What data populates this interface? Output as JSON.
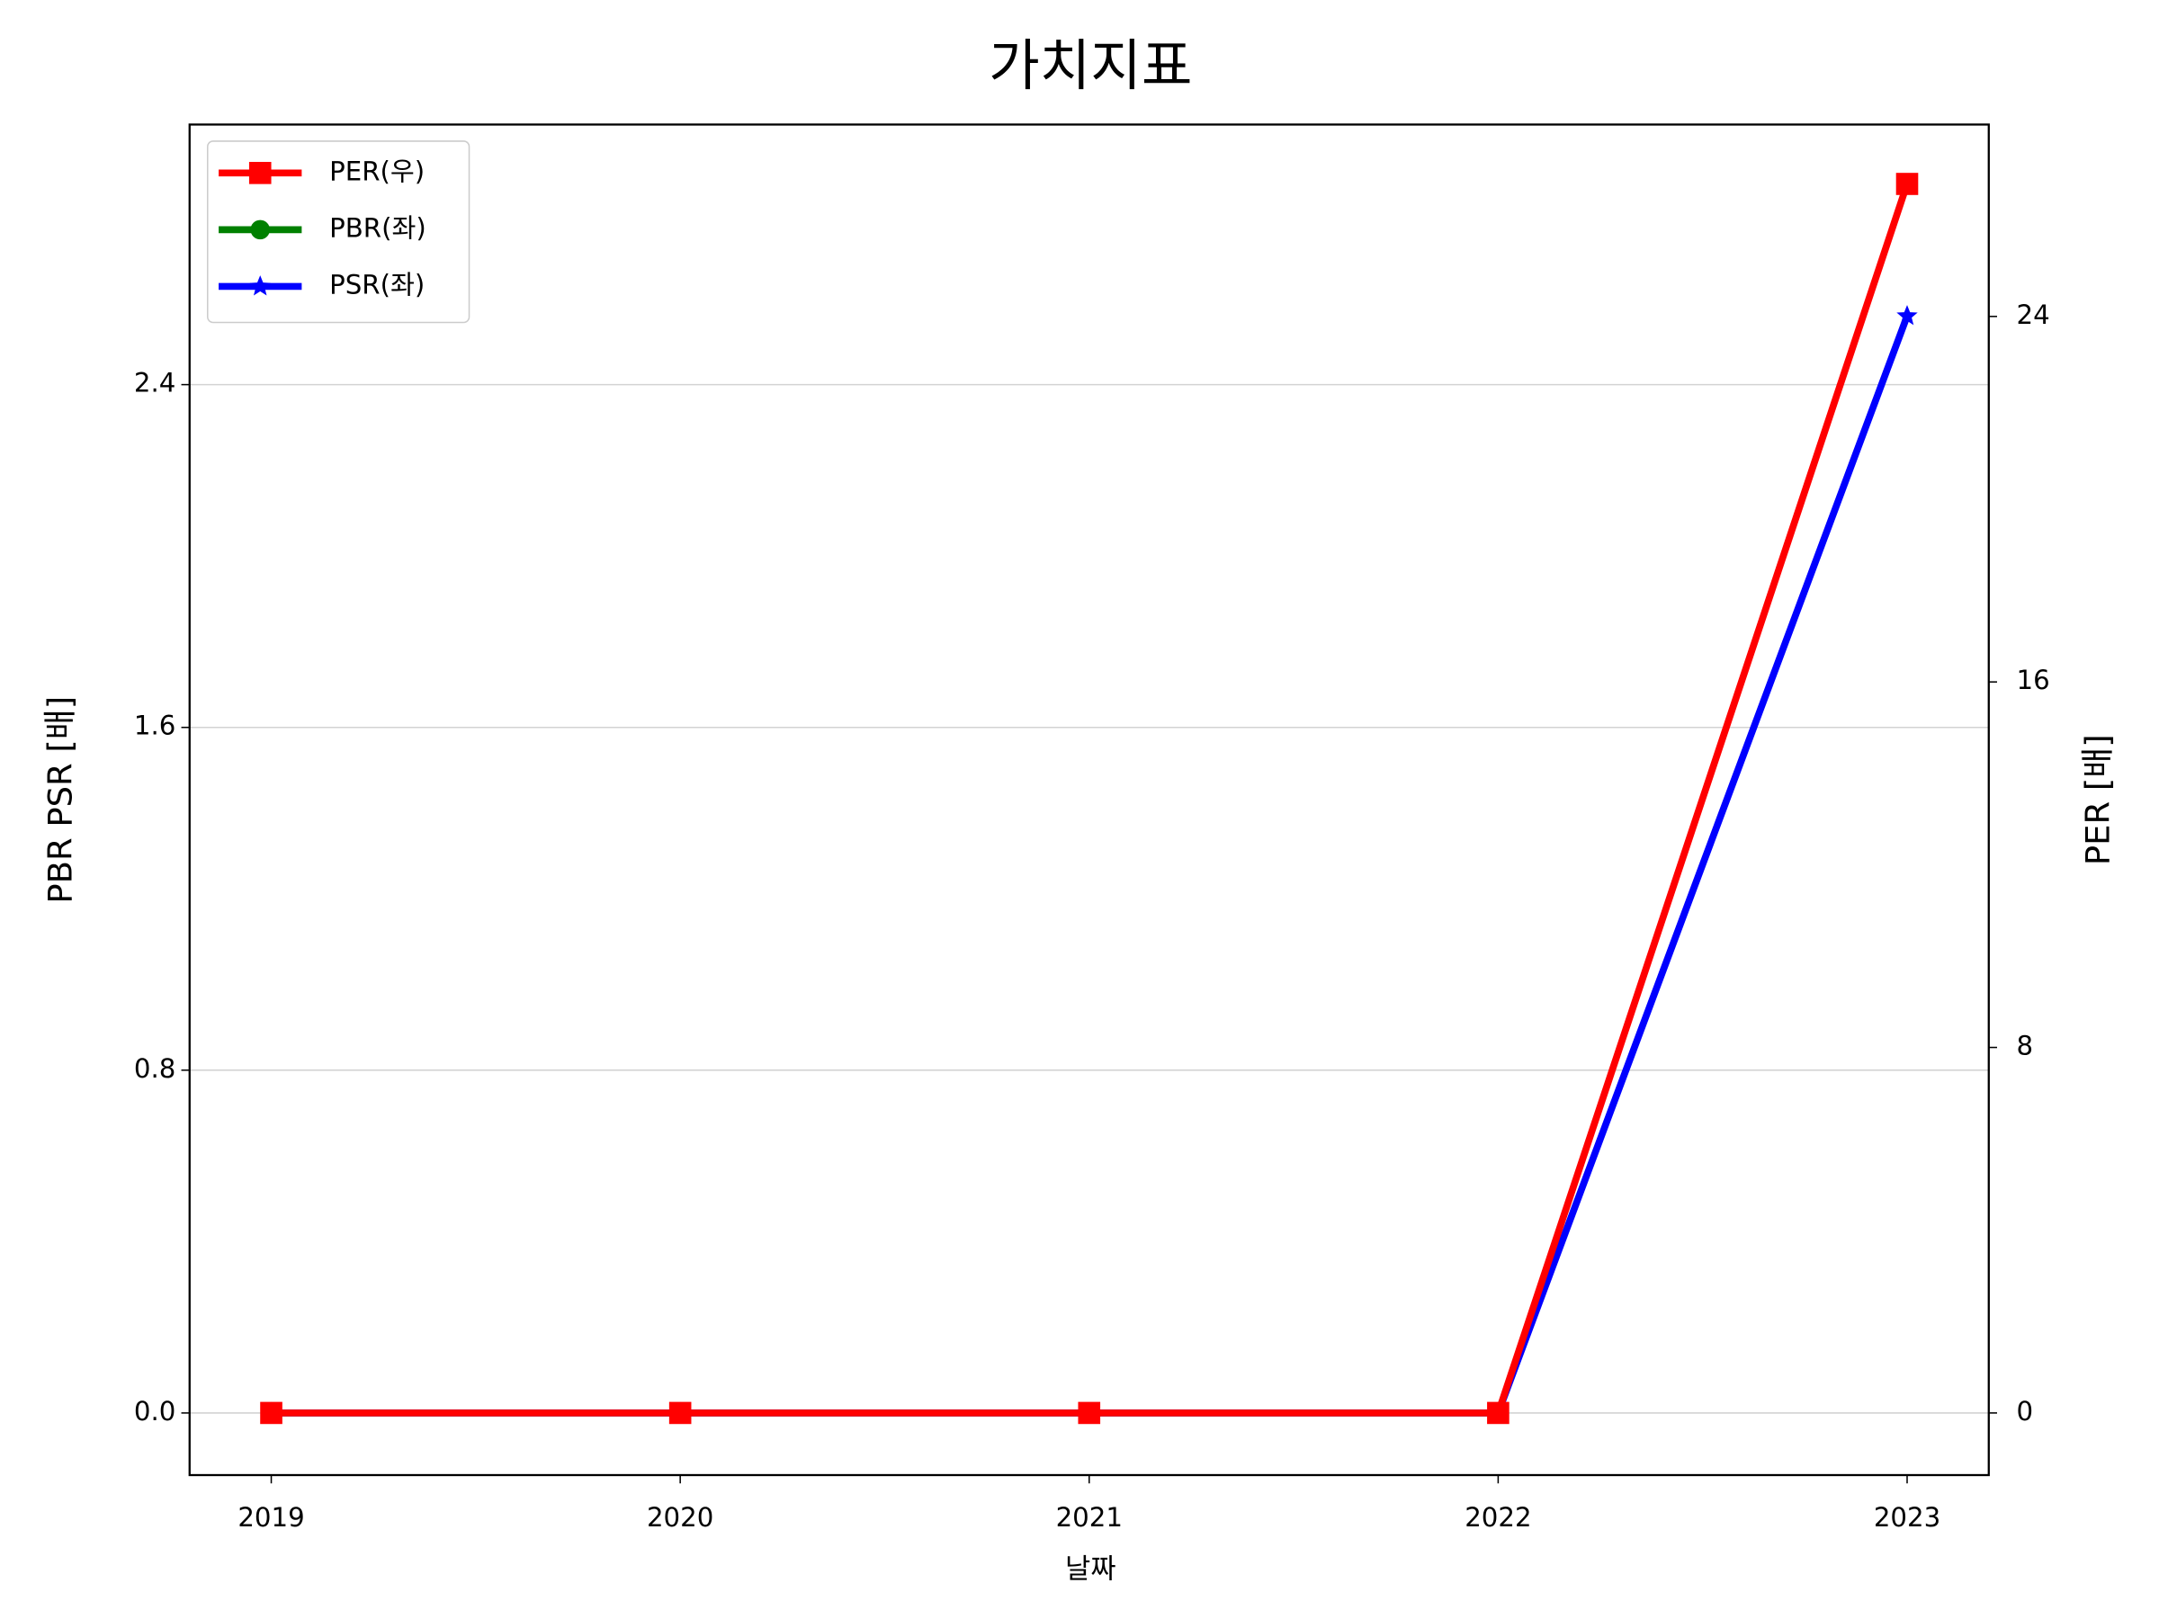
{
  "chart_data": {
    "type": "line",
    "title": "가치지표",
    "x_label": "날짜",
    "y_label": "PBR PSR [배]",
    "y2_label": "PER [배]",
    "categories": [
      "2019",
      "2020",
      "2021",
      "2022",
      "2023"
    ],
    "series": [
      {
        "name": "PER(우)",
        "color": "#ff0000",
        "marker": "square",
        "axis": "y2",
        "values": [
          0,
          0,
          0,
          0,
          26.9
        ]
      },
      {
        "name": "PBR(좌)",
        "color": "#008000",
        "marker": "circle",
        "axis": "y",
        "values": [
          0,
          0,
          0,
          0,
          null
        ]
      },
      {
        "name": "PSR(좌)",
        "color": "#0000ff",
        "marker": "star",
        "axis": "y",
        "values": [
          0,
          0,
          0,
          0,
          2.56
        ]
      }
    ],
    "ylim": [
      -0.145,
      3.007
    ],
    "yticks": [
      {
        "value": 0,
        "label": "0.0"
      },
      0.8,
      1.6,
      2.4
    ],
    "y2lim": [
      -1.36,
      28.2
    ],
    "y2ticks": [
      0,
      8,
      16,
      24
    ],
    "y_label_color": "#008000",
    "y2_label_color": "#ff0000",
    "grid": true,
    "legend": "upper left"
  }
}
